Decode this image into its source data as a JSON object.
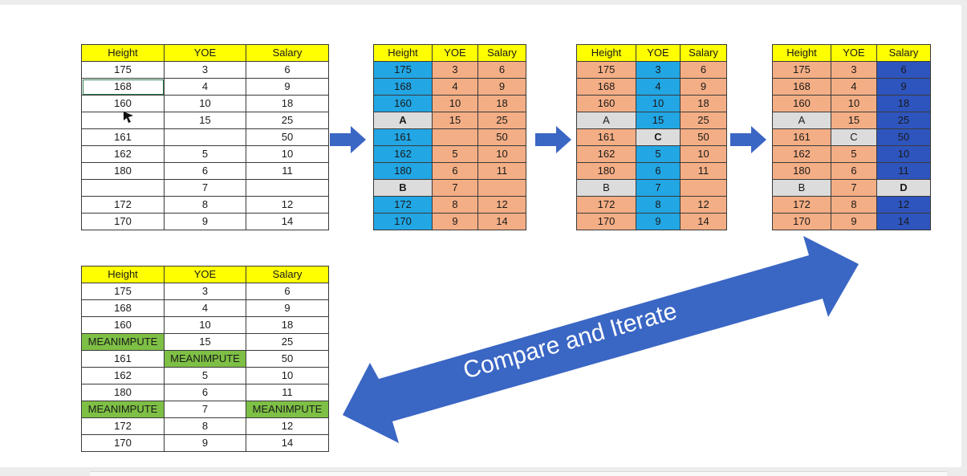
{
  "headers": [
    "Height",
    "YOE",
    "Salary"
  ],
  "table1": {
    "rows": [
      [
        "175",
        "3",
        "6"
      ],
      [
        "168",
        "4",
        "9"
      ],
      [
        "160",
        "10",
        "18"
      ],
      [
        "",
        "15",
        "25"
      ],
      [
        "161",
        "",
        "50"
      ],
      [
        "162",
        "5",
        "10"
      ],
      [
        "180",
        "6",
        "11"
      ],
      [
        "",
        "7",
        ""
      ],
      [
        "172",
        "8",
        "12"
      ],
      [
        "170",
        "9",
        "14"
      ]
    ]
  },
  "table2": {
    "rows": [
      [
        "175",
        "3",
        "6"
      ],
      [
        "168",
        "4",
        "9"
      ],
      [
        "160",
        "10",
        "18"
      ],
      [
        "A",
        "15",
        "25"
      ],
      [
        "161",
        "",
        "50"
      ],
      [
        "162",
        "5",
        "10"
      ],
      [
        "180",
        "6",
        "11"
      ],
      [
        "B",
        "7",
        ""
      ],
      [
        "172",
        "8",
        "12"
      ],
      [
        "170",
        "9",
        "14"
      ]
    ]
  },
  "table3": {
    "rows": [
      [
        "175",
        "3",
        "6"
      ],
      [
        "168",
        "4",
        "9"
      ],
      [
        "160",
        "10",
        "18"
      ],
      [
        "A",
        "15",
        "25"
      ],
      [
        "161",
        "C",
        "50"
      ],
      [
        "162",
        "5",
        "10"
      ],
      [
        "180",
        "6",
        "11"
      ],
      [
        "B",
        "7",
        ""
      ],
      [
        "172",
        "8",
        "12"
      ],
      [
        "170",
        "9",
        "14"
      ]
    ]
  },
  "table4": {
    "rows": [
      [
        "175",
        "3",
        "6"
      ],
      [
        "168",
        "4",
        "9"
      ],
      [
        "160",
        "10",
        "18"
      ],
      [
        "A",
        "15",
        "25"
      ],
      [
        "161",
        "C",
        "50"
      ],
      [
        "162",
        "5",
        "10"
      ],
      [
        "180",
        "6",
        "11"
      ],
      [
        "B",
        "7",
        "D"
      ],
      [
        "172",
        "8",
        "12"
      ],
      [
        "170",
        "9",
        "14"
      ]
    ]
  },
  "table5": {
    "rows": [
      [
        "175",
        "3",
        "6"
      ],
      [
        "168",
        "4",
        "9"
      ],
      [
        "160",
        "10",
        "18"
      ],
      [
        "MEANIMPUTE",
        "15",
        "25"
      ],
      [
        "161",
        "MEANIMPUTE",
        "50"
      ],
      [
        "162",
        "5",
        "10"
      ],
      [
        "180",
        "6",
        "11"
      ],
      [
        "MEANIMPUTE",
        "7",
        "MEANIMPUTE"
      ],
      [
        "172",
        "8",
        "12"
      ],
      [
        "170",
        "9",
        "14"
      ]
    ]
  },
  "arrow_label": "Compare and Iterate",
  "colors": {
    "header": "#ffff00",
    "current_column": "#22a6e4",
    "other_columns": "#f4ae85",
    "final_column": "#2e55be",
    "placeholder": "#dcdcdc",
    "mean_impute": "#7ec045",
    "arrow": "#3a66c4"
  }
}
